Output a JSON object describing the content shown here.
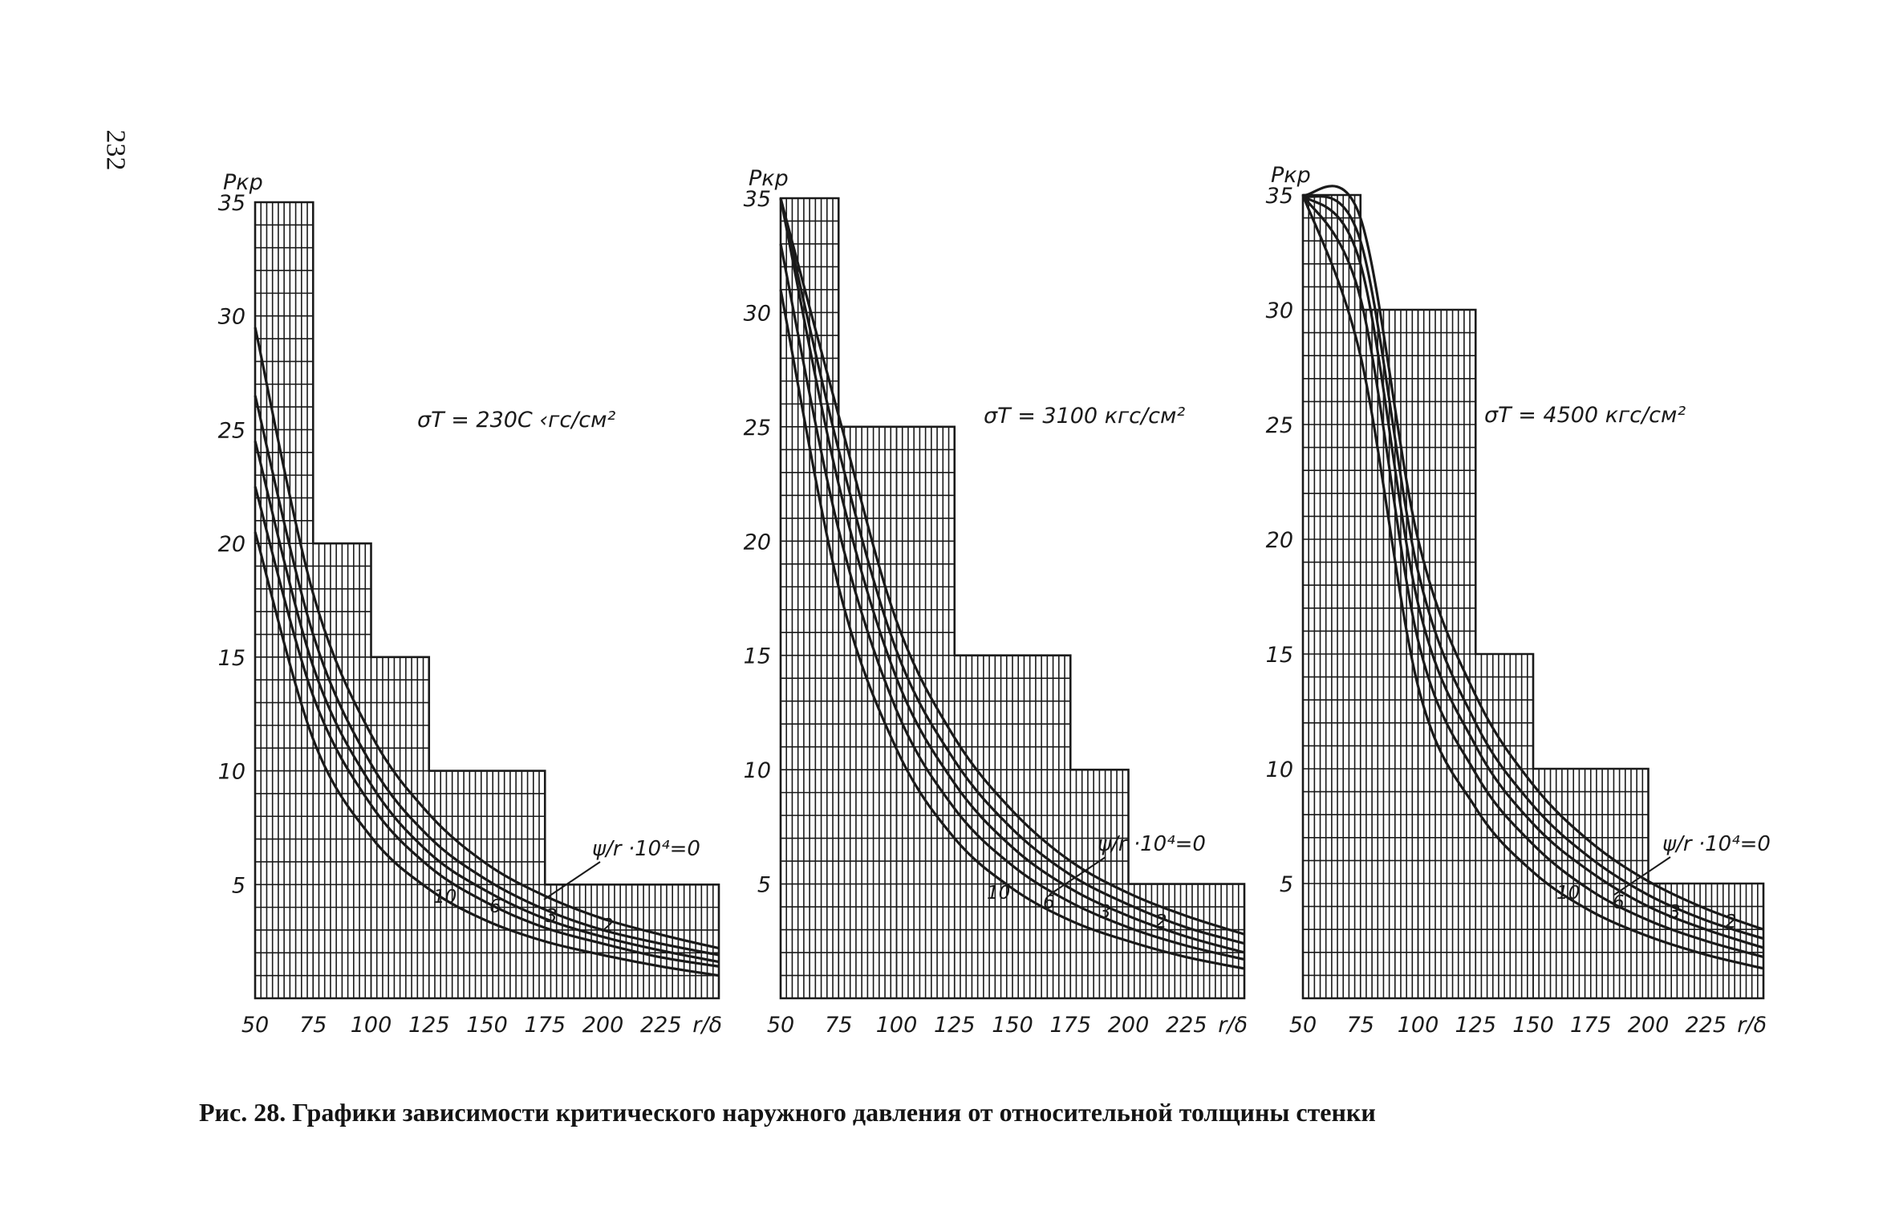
{
  "page": {
    "number": "232"
  },
  "caption": "Рис. 28. Графики зависимости критического наружного давления от относительной толщины стенки",
  "colors": {
    "ink": "#1a1a1a",
    "paper": "#ffffff"
  },
  "chart_data": [
    {
      "type": "line",
      "ylabel": "Pкр",
      "xlabel": "r/δ",
      "annotation": "σT = 230C ‹гс/см²",
      "param_label": "ψ/r ·10⁴=0",
      "xlim": [
        50,
        250
      ],
      "ylim": [
        0,
        35
      ],
      "x_ticks": [
        "50",
        "75",
        "100",
        "125",
        "150",
        "175",
        "200",
        "225"
      ],
      "y_ticks": [
        "5",
        "10",
        "15",
        "20",
        "25",
        "30",
        "35"
      ],
      "grid_steps": [
        [
          50,
          75,
          35
        ],
        [
          75,
          100,
          20
        ],
        [
          100,
          125,
          15
        ],
        [
          125,
          175,
          10
        ],
        [
          175,
          250,
          5
        ]
      ],
      "series": [
        {
          "name": "0",
          "x": [
            50,
            75,
            100,
            125,
            150,
            175,
            200,
            225,
            250
          ],
          "y": [
            29.5,
            17.8,
            11.6,
            8.1,
            5.9,
            4.5,
            3.5,
            2.8,
            2.2
          ]
        },
        {
          "name": "2",
          "x": [
            50,
            75,
            100,
            125,
            150,
            175,
            200,
            225,
            250
          ],
          "y": [
            26.5,
            16.0,
            10.3,
            7.1,
            5.2,
            3.9,
            3.0,
            2.4,
            1.9
          ]
        },
        {
          "name": "3",
          "x": [
            50,
            75,
            100,
            125,
            150,
            175,
            200,
            225,
            250
          ],
          "y": [
            24.5,
            14.6,
            9.4,
            6.4,
            4.7,
            3.5,
            2.7,
            2.1,
            1.6
          ]
        },
        {
          "name": "6",
          "x": [
            50,
            75,
            100,
            125,
            150,
            175,
            200,
            225,
            250
          ],
          "y": [
            22.5,
            13.3,
            8.5,
            5.8,
            4.2,
            3.1,
            2.4,
            1.8,
            1.4
          ]
        },
        {
          "name": "10",
          "x": [
            50,
            75,
            100,
            125,
            150,
            175,
            200,
            225,
            250
          ],
          "y": [
            20.5,
            11.4,
            7.1,
            4.8,
            3.4,
            2.5,
            1.9,
            1.4,
            1.0
          ]
        }
      ]
    },
    {
      "type": "line",
      "ylabel": "Pкр",
      "xlabel": "r/δ",
      "annotation": "σT = 3100 кгс/см²",
      "param_label": "ψ/r ·10⁴=0",
      "xlim": [
        50,
        250
      ],
      "ylim": [
        0,
        35
      ],
      "x_ticks": [
        "50",
        "75",
        "100",
        "125",
        "150",
        "175",
        "200",
        "225"
      ],
      "y_ticks": [
        "5",
        "10",
        "15",
        "20",
        "25",
        "30",
        "35"
      ],
      "grid_steps": [
        [
          50,
          75,
          35
        ],
        [
          75,
          100,
          25
        ],
        [
          100,
          125,
          25
        ],
        [
          125,
          175,
          15
        ],
        [
          175,
          200,
          10
        ],
        [
          200,
          250,
          5
        ]
      ],
      "series": [
        {
          "name": "0",
          "x": [
            50,
            75,
            100,
            125,
            150,
            175,
            200,
            225,
            250
          ],
          "y": [
            35,
            25.5,
            16.5,
            11.4,
            8.2,
            6.0,
            4.6,
            3.6,
            2.8
          ]
        },
        {
          "name": "2",
          "x": [
            50,
            75,
            100,
            125,
            150,
            175,
            200,
            225,
            250
          ],
          "y": [
            35,
            24.0,
            15.2,
            10.4,
            7.4,
            5.4,
            4.1,
            3.1,
            2.4
          ]
        },
        {
          "name": "3",
          "x": [
            50,
            75,
            100,
            125,
            150,
            175,
            200,
            225,
            250
          ],
          "y": [
            35,
            22.5,
            14.0,
            9.4,
            6.6,
            4.8,
            3.6,
            2.7,
            2.0
          ]
        },
        {
          "name": "6",
          "x": [
            50,
            75,
            100,
            125,
            150,
            175,
            200,
            225,
            250
          ],
          "y": [
            33,
            20.5,
            12.6,
            8.3,
            5.8,
            4.2,
            3.1,
            2.3,
            1.7
          ]
        },
        {
          "name": "10",
          "x": [
            50,
            75,
            100,
            125,
            150,
            175,
            200,
            225,
            250
          ],
          "y": [
            31,
            18.0,
            10.9,
            7.0,
            4.8,
            3.4,
            2.5,
            1.8,
            1.3
          ]
        }
      ]
    },
    {
      "type": "line",
      "ylabel": "Pкр",
      "xlabel": "r/δ",
      "annotation": "σT = 4500 кгс/см²",
      "param_label": "ψ/r ·10⁴=0",
      "xlim": [
        50,
        250
      ],
      "ylim": [
        0,
        35
      ],
      "x_ticks": [
        "50",
        "75",
        "100",
        "125",
        "150",
        "175",
        "200",
        "225"
      ],
      "y_ticks": [
        "5",
        "10",
        "15",
        "20",
        "25",
        "30",
        "35"
      ],
      "grid_steps": [
        [
          50,
          75,
          35
        ],
        [
          75,
          100,
          30
        ],
        [
          100,
          125,
          30
        ],
        [
          125,
          150,
          15
        ],
        [
          150,
          200,
          10
        ],
        [
          200,
          250,
          5
        ]
      ],
      "series": [
        {
          "name": "0",
          "x": [
            50,
            75,
            100,
            125,
            150,
            175,
            200,
            225,
            250
          ],
          "y": [
            35,
            34.0,
            20.0,
            13.2,
            9.3,
            6.8,
            5.1,
            3.9,
            3.0
          ]
        },
        {
          "name": "2",
          "x": [
            50,
            75,
            100,
            125,
            150,
            175,
            200,
            225,
            250
          ],
          "y": [
            35,
            33.0,
            18.6,
            12.0,
            8.4,
            6.1,
            4.5,
            3.4,
            2.6
          ]
        },
        {
          "name": "3",
          "x": [
            50,
            75,
            100,
            125,
            150,
            175,
            200,
            225,
            250
          ],
          "y": [
            35,
            32.0,
            17.2,
            11.0,
            7.6,
            5.5,
            4.0,
            3.0,
            2.2
          ]
        },
        {
          "name": "6",
          "x": [
            50,
            75,
            100,
            125,
            150,
            175,
            200,
            225,
            250
          ],
          "y": [
            35,
            30.5,
            15.6,
            9.8,
            6.7,
            4.7,
            3.4,
            2.5,
            1.8
          ]
        },
        {
          "name": "10",
          "x": [
            50,
            75,
            100,
            125,
            150,
            175,
            200,
            225,
            250
          ],
          "y": [
            35,
            28.0,
            13.6,
            8.3,
            5.5,
            3.8,
            2.7,
            1.9,
            1.3
          ]
        }
      ]
    }
  ]
}
